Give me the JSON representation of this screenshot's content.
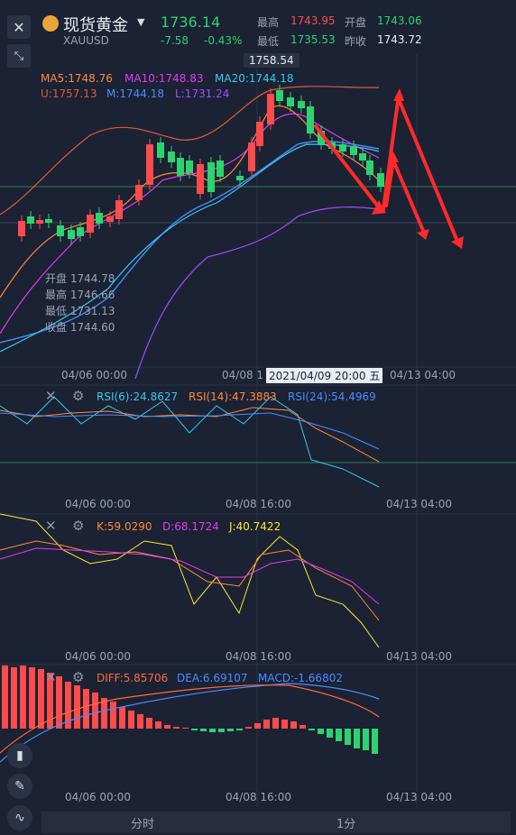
{
  "header": {
    "title": "现货黄金",
    "symbol": "XAUUSD",
    "price": "1736.14",
    "change": "-7.58",
    "change_pct": "-0.43%",
    "high_label": "最高",
    "high_value": "1743.95",
    "open_label": "开盘",
    "open_value": "1743.06",
    "low_label": "最低",
    "low_value": "1735.53",
    "prev_close_label": "昨收",
    "prev_close_value": "1743.72"
  },
  "main_chart": {
    "peak_label": "1758.54",
    "ma": {
      "ma5": "MA5:1748.76",
      "ma10": "MA10:1748.83",
      "ma20": "MA20:1744.18"
    },
    "boll": {
      "u": "U:1757.13",
      "m": "M:1744.18",
      "l": "L:1731.24"
    },
    "info": {
      "open": "开盘 1744.78",
      "high": "最高 1746.66",
      "low": "最低 1731.13",
      "close": "收盘 1744.60"
    },
    "x_ticks": [
      "04/06 00:00",
      "04/08 1",
      "04/13 04:00"
    ],
    "crosshair_label": "2021/04/09 20:00 五"
  },
  "rsi": {
    "rsi6": "RSI(6):24.8627",
    "rsi14": "RSI(14):47.3883",
    "rsi24": "RSI(24):54.4969",
    "x_ticks": [
      "04/06 00:00",
      "04/08 16:00",
      "04/13 04:00"
    ]
  },
  "kdj": {
    "k": "K:59.0290",
    "d": "D:68.1724",
    "j": "J:40.7422",
    "x_ticks": [
      "04/06 00:00",
      "04/08 16:00",
      "04/13 04:00"
    ]
  },
  "macd": {
    "diff": "DIFF:5.85706",
    "dea": "DEA:6.69107",
    "macd": "MACD:-1.66802",
    "x_ticks": [
      "04/06 00:00",
      "04/08 16:00",
      "04/13 04:00"
    ]
  },
  "bottom": {
    "tab1": "分时",
    "tab2": "1分"
  },
  "colors": {
    "up": "#ff4b4b",
    "down": "#2dd36f",
    "ma5": "#ff8a3d",
    "ma10": "#e23cf0",
    "ma20": "#38c9f0",
    "boll_u": "#e05a3a",
    "boll_m": "#4a8cff",
    "boll_l": "#a04bff",
    "j": "#ffe633",
    "arrow": "#ff2a2a"
  }
}
